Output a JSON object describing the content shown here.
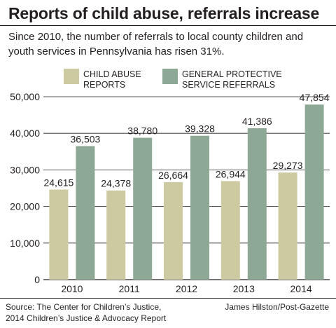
{
  "title": "Reports of child abuse, referrals increase",
  "subtitle": "Since 2010, the number of referrals to local county children and youth services in Pennsylvania has risen 31%.",
  "legend": {
    "abuse": {
      "line1": "CHILD ABUSE",
      "line2": "REPORTS"
    },
    "referrals": {
      "line1": "GENERAL PROTECTIVE",
      "line2": "SERVICE REFERRALS"
    }
  },
  "source": {
    "line1": "Source: The Center for Children’s Justice,",
    "line2": "2014 Children’s Justice & Advocacy Report"
  },
  "credit": "James Hilston/Post-Gazette",
  "colors": {
    "abuse": "#cdcaa2",
    "referrals": "#8ea896",
    "grid": "#231f20",
    "text": "#231f20"
  },
  "chart_data": {
    "type": "bar",
    "categories": [
      "2010",
      "2011",
      "2012",
      "2013",
      "2014"
    ],
    "series": [
      {
        "name": "CHILD ABUSE REPORTS",
        "values": [
          24615,
          24378,
          26664,
          26944,
          29273
        ],
        "labels": [
          "24,615",
          "24,378",
          "26,664",
          "26,944",
          "29,273"
        ]
      },
      {
        "name": "GENERAL PROTECTIVE SERVICE REFERRALS",
        "values": [
          36503,
          38780,
          39328,
          41386,
          47854
        ],
        "labels": [
          "36,503",
          "38,780",
          "39,328",
          "41,386",
          "47,854"
        ]
      }
    ],
    "yticks": [
      0,
      10000,
      20000,
      30000,
      40000,
      50000
    ],
    "ytick_labels": [
      "0",
      "10,000",
      "20,000",
      "30,000",
      "40,000",
      "50,000"
    ],
    "ylim": [
      0,
      50000
    ],
    "grid": true,
    "legend_position": "top-left"
  }
}
